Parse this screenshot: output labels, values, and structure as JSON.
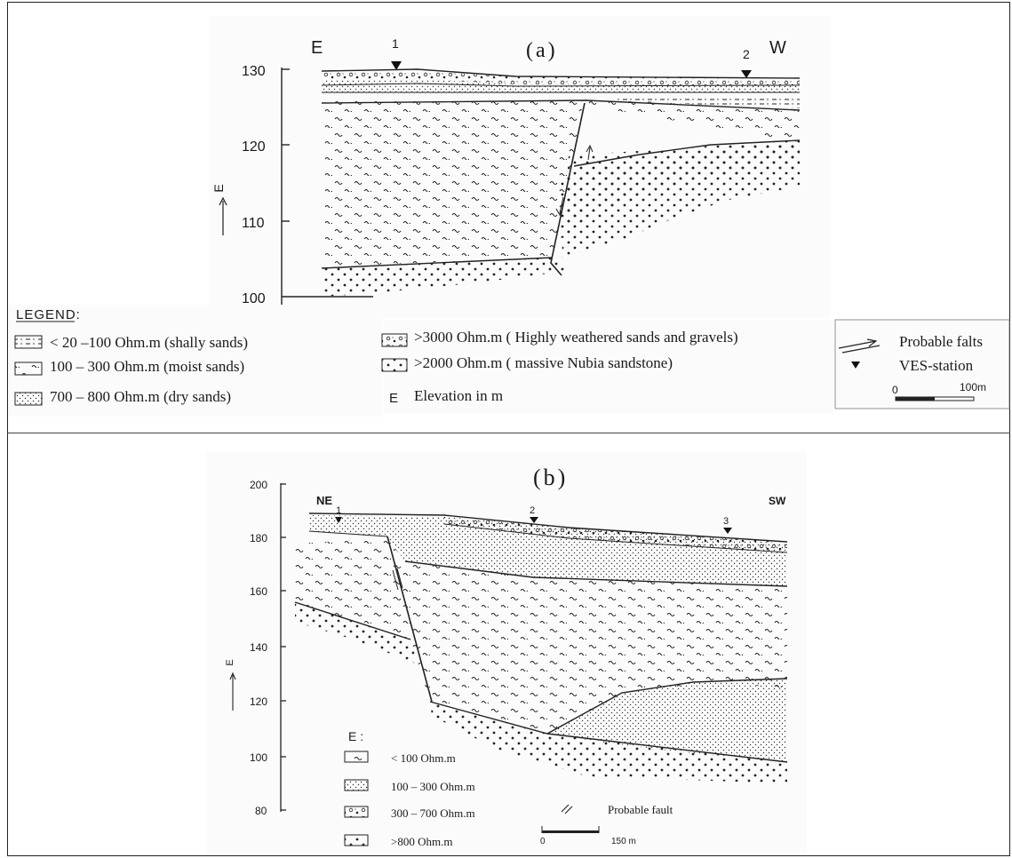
{
  "panel_a": {
    "title": "(a)",
    "left_direction": "E",
    "right_direction": "W",
    "y_axis_label": "E",
    "y_ticks": [
      "130",
      "120",
      "110",
      "100"
    ],
    "stations": [
      "1",
      "2"
    ],
    "legend_heading": "LEGEND:",
    "legend_items": [
      "< 20 –100 Ohm.m (shally sands)",
      "100 – 300 Ohm.m (moist sands)",
      "700 – 800 Ohm.m (dry sands)",
      ">3000 Ohm.m ( Highly weathered sands and gravels)",
      ">2000 Ohm.m ( massive Nubia sandstone)",
      "Elevation in m"
    ],
    "elevation_symbol": "E",
    "fault_label": "Probable falts",
    "ves_label": "VES-station",
    "scale_start": "0",
    "scale_end": "100m"
  },
  "panel_b": {
    "title": "(b)",
    "left_direction": "NE",
    "right_direction": "SW",
    "y_axis_label": "E",
    "y_ticks": [
      "200",
      "180",
      "160",
      "140",
      "120",
      "100",
      "80"
    ],
    "stations": [
      "1",
      "2",
      "3"
    ],
    "legend_heading": "E :",
    "legend_items": [
      "< 100 Ohm.m",
      "100 – 300 Ohm.m",
      "300 – 700 Ohm.m",
      ">800 Ohm.m"
    ],
    "fault_label": "Probable fault",
    "scale_start": "0",
    "scale_end": "150 m"
  }
}
